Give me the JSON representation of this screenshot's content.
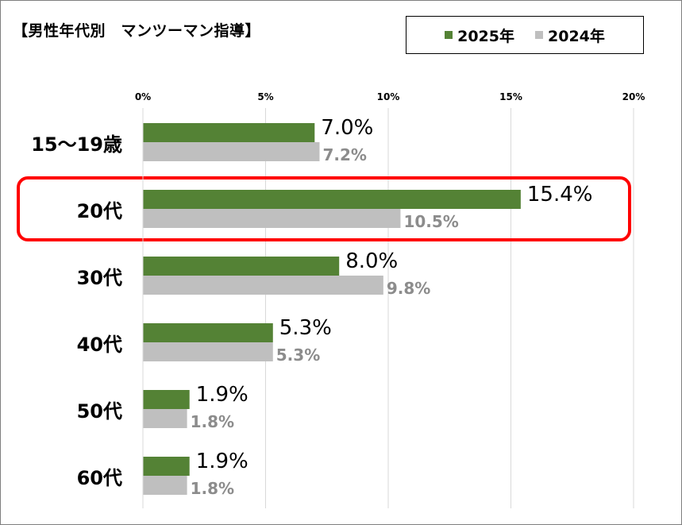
{
  "chart_data": {
    "type": "bar",
    "orientation": "horizontal",
    "title": "【男性年代別　マンツーマン指導】",
    "categories": [
      "15～19歳",
      "20代",
      "30代",
      "40代",
      "50代",
      "60代"
    ],
    "series": [
      {
        "name": "2025年",
        "color": "#548235",
        "values": [
          7.0,
          15.4,
          8.0,
          5.3,
          1.9,
          1.9
        ],
        "labels": [
          "7.0%",
          "15.4%",
          "8.0%",
          "5.3%",
          "1.9%",
          "1.9%"
        ]
      },
      {
        "name": "2024年",
        "color": "#bfbfbf",
        "values": [
          7.2,
          10.5,
          9.8,
          5.3,
          1.8,
          1.8
        ],
        "labels": [
          "7.2%",
          "10.5%",
          "9.8%",
          "5.3%",
          "1.8%",
          "1.8%"
        ]
      }
    ],
    "xlim": [
      0,
      20
    ],
    "ticks": [
      0,
      5,
      10,
      15,
      20
    ],
    "tick_labels": [
      "0%",
      "5%",
      "10%",
      "15%",
      "20%"
    ],
    "grid": true,
    "legend_position": "top-right",
    "highlight_category": "20代",
    "highlight_color": "#ff0000"
  }
}
